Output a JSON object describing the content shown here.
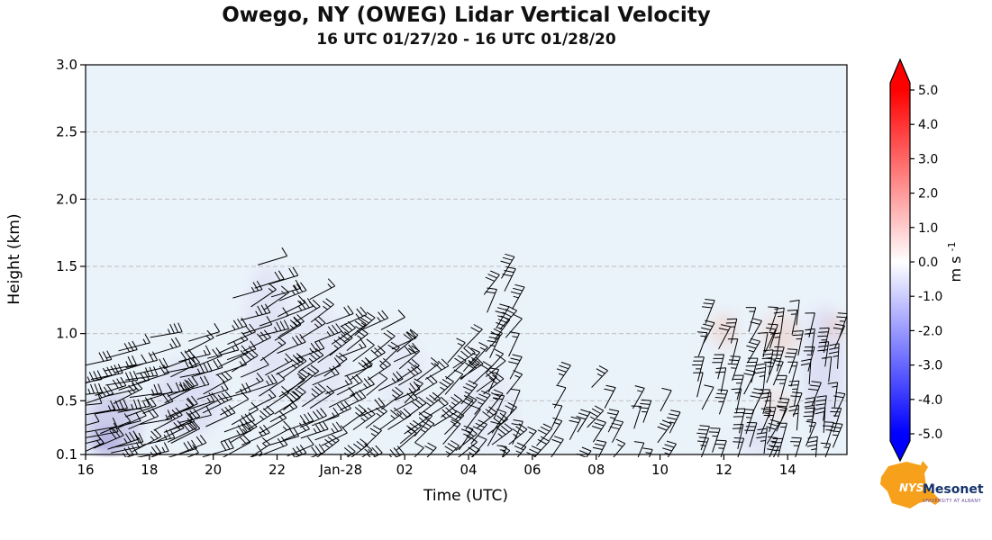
{
  "chart_data": {
    "type": "heatmap",
    "title": "Owego, NY (OWEG) Lidar Vertical Velocity",
    "subtitle": "16 UTC 01/27/20 - 16 UTC 01/28/20",
    "xlabel": "Time (UTC)",
    "ylabel": "Height (km)",
    "ylim": [
      0.1,
      3.0
    ],
    "xlim_hours_after_start": [
      0,
      23.8
    ],
    "x_ticks": [
      {
        "h": 0,
        "label": "16"
      },
      {
        "h": 2,
        "label": "18"
      },
      {
        "h": 4,
        "label": "20"
      },
      {
        "h": 6,
        "label": "22"
      },
      {
        "h": 8,
        "label": "Jan-28"
      },
      {
        "h": 10,
        "label": "02"
      },
      {
        "h": 12,
        "label": "04"
      },
      {
        "h": 14,
        "label": "06"
      },
      {
        "h": 16,
        "label": "08"
      },
      {
        "h": 18,
        "label": "10"
      },
      {
        "h": 20,
        "label": "12"
      },
      {
        "h": 22,
        "label": "14"
      }
    ],
    "y_ticks": [
      {
        "km": 3.0,
        "label": "3.0"
      },
      {
        "km": 2.5,
        "label": "2.5"
      },
      {
        "km": 2.0,
        "label": "2.0"
      },
      {
        "km": 1.5,
        "label": "1.5"
      },
      {
        "km": 1.0,
        "label": "1.0"
      },
      {
        "km": 0.5,
        "label": "0.5"
      },
      {
        "km": 0.1,
        "label": "0.1"
      }
    ],
    "grid_lines_km": [
      0.5,
      1.0,
      1.5,
      2.0,
      2.5
    ],
    "colorbar": {
      "min": -5.0,
      "max": 5.0,
      "tick_labels": [
        "5.0",
        "4.0",
        "3.0",
        "2.0",
        "1.0",
        "0.0",
        "-1.0",
        "-2.0",
        "-3.0",
        "-4.0",
        "-5.0"
      ],
      "label_main": "m s",
      "label_exp": "-1",
      "colormap": "bwr",
      "colors": {
        "positive": "#ff0000",
        "zero": "#ffffff",
        "negative": "#0000ff"
      }
    },
    "background_near_zero_color": "#eaf2fa",
    "wind_barb_clusters": [
      {
        "t0": 0.0,
        "t1": 1.4,
        "k0": 0.1,
        "k1": 0.8,
        "dt": 0.4,
        "dk": 0.11,
        "angle": -15,
        "len": 36
      },
      {
        "t0": 1.4,
        "t1": 3.0,
        "k0": 0.1,
        "k1": 0.9,
        "dt": 0.4,
        "dk": 0.11,
        "angle": -18,
        "len": 36
      },
      {
        "t0": 3.0,
        "t1": 5.0,
        "k0": 0.1,
        "k1": 1.0,
        "dt": 0.42,
        "dk": 0.12,
        "angle": -20,
        "len": 36
      },
      {
        "t0": 5.0,
        "t1": 6.6,
        "k0": 0.1,
        "k1": 1.45,
        "dt": 0.45,
        "dk": 0.13,
        "angle": -24,
        "len": 34
      },
      {
        "t0": 6.6,
        "t1": 8.6,
        "k0": 0.1,
        "k1": 1.3,
        "dt": 0.45,
        "dk": 0.13,
        "angle": -28,
        "len": 32
      },
      {
        "t0": 8.6,
        "t1": 10.2,
        "k0": 0.1,
        "k1": 1.05,
        "dt": 0.45,
        "dk": 0.12,
        "angle": -34,
        "len": 30
      },
      {
        "t0": 10.2,
        "t1": 12.0,
        "k0": 0.1,
        "k1": 1.0,
        "dt": 0.45,
        "dk": 0.12,
        "angle": -40,
        "len": 30
      },
      {
        "t0": 12.0,
        "t1": 12.9,
        "k0": 0.1,
        "k1": 0.85,
        "dt": 0.45,
        "dk": 0.12,
        "angle": -46,
        "len": 28
      },
      {
        "t0": 12.9,
        "t1": 13.6,
        "k0": 0.1,
        "k1": 1.45,
        "dt": 0.5,
        "dk": 0.13,
        "angle": -58,
        "len": 28
      },
      {
        "t0": 13.6,
        "t1": 14.4,
        "k0": 0.1,
        "k1": 0.35,
        "dt": 0.4,
        "dk": 0.12,
        "angle": -50,
        "len": 26
      },
      {
        "t0": 14.9,
        "t1": 16.6,
        "k0": 0.1,
        "k1": 0.65,
        "dt": 0.55,
        "dk": 0.14,
        "angle": -55,
        "len": 26
      },
      {
        "t0": 17.2,
        "t1": 18.7,
        "k0": 0.1,
        "k1": 0.5,
        "dt": 0.55,
        "dk": 0.14,
        "angle": -62,
        "len": 26
      },
      {
        "t0": 19.4,
        "t1": 21.4,
        "k0": 0.1,
        "k1": 1.15,
        "dt": 0.5,
        "dk": 0.13,
        "angle": -70,
        "len": 28
      },
      {
        "t0": 21.4,
        "t1": 23.8,
        "k0": 0.1,
        "k1": 1.1,
        "dt": 0.45,
        "dk": 0.12,
        "angle": -76,
        "len": 28
      }
    ],
    "shaded_regions": [
      {
        "t0": 0.0,
        "t1": 1.7,
        "k0": 0.1,
        "k1": 0.55,
        "color": "#b7b1e0",
        "opacity": 0.55
      },
      {
        "t0": 0.2,
        "t1": 1.1,
        "k0": 0.1,
        "k1": 0.3,
        "color": "#9f97d6",
        "opacity": 0.5
      },
      {
        "t0": 2.2,
        "t1": 4.3,
        "k0": 0.25,
        "k1": 0.8,
        "color": "#cdc9ec",
        "opacity": 0.45
      },
      {
        "t0": 5.0,
        "t1": 6.4,
        "k0": 0.5,
        "k1": 1.5,
        "color": "#d4d0ef",
        "opacity": 0.4
      },
      {
        "t0": 6.4,
        "t1": 8.2,
        "k0": 0.4,
        "k1": 1.2,
        "color": "#d8d5f0",
        "opacity": 0.35
      },
      {
        "t0": 9.3,
        "t1": 10.6,
        "k0": 0.4,
        "k1": 1.0,
        "color": "#dcd9f2",
        "opacity": 0.3
      },
      {
        "t0": 11.5,
        "t1": 13.5,
        "k0": 0.15,
        "k1": 0.7,
        "color": "#dcd9f2",
        "opacity": 0.3
      },
      {
        "t0": 19.6,
        "t1": 20.4,
        "k0": 0.9,
        "k1": 1.15,
        "color": "#f2c8bf",
        "opacity": 0.5
      },
      {
        "t0": 21.2,
        "t1": 22.4,
        "k0": 0.85,
        "k1": 1.15,
        "color": "#f0c4ba",
        "opacity": 0.45
      },
      {
        "t0": 21.2,
        "t1": 22.2,
        "k0": 0.35,
        "k1": 0.6,
        "color": "#f2cfc7",
        "opacity": 0.35
      },
      {
        "t0": 20.5,
        "t1": 21.8,
        "k0": 0.1,
        "k1": 0.35,
        "color": "#cdc9ec",
        "opacity": 0.35
      },
      {
        "t0": 22.5,
        "t1": 23.8,
        "k0": 0.3,
        "k1": 1.2,
        "color": "#cdc9ec",
        "opacity": 0.45
      },
      {
        "t0": 23.2,
        "t1": 23.8,
        "k0": 0.95,
        "k1": 1.15,
        "color": "#efc0b6",
        "opacity": 0.4
      }
    ]
  },
  "logo": {
    "nys": "NYS",
    "mesonet": "Mesonet",
    "caption": "UNIVERSITY AT ALBANY",
    "state_color": "#f6a01b"
  }
}
